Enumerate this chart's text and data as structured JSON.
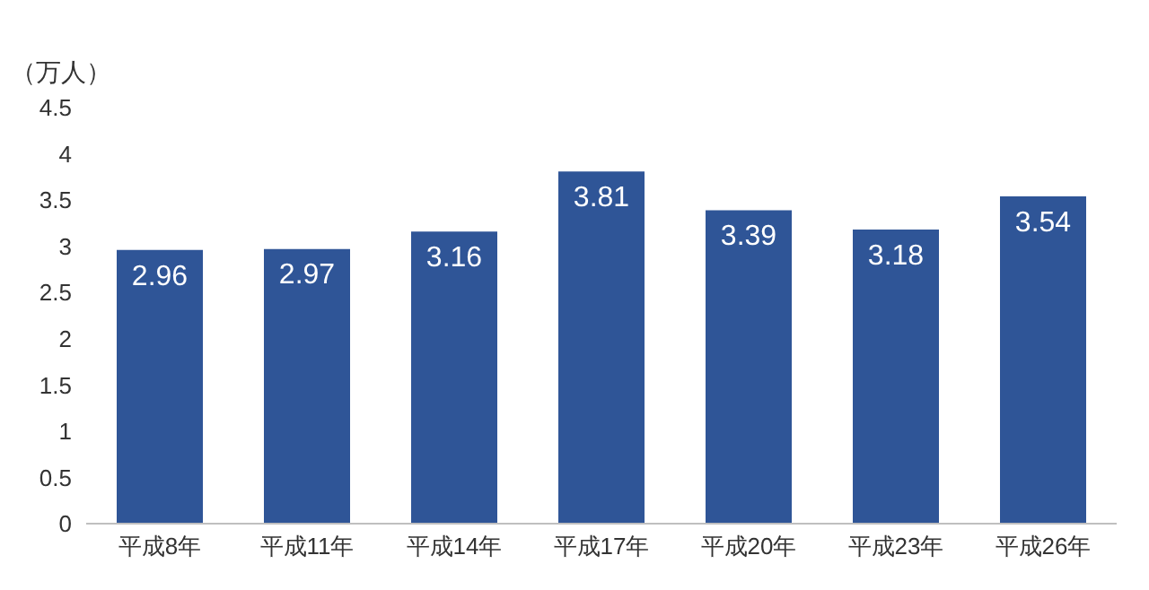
{
  "chart_data": {
    "type": "bar",
    "ylabel": "（万人）",
    "categories": [
      "平成8年",
      "平成11年",
      "平成14年",
      "平成17年",
      "平成20年",
      "平成23年",
      "平成26年"
    ],
    "values": [
      2.96,
      2.97,
      3.16,
      3.81,
      3.39,
      3.18,
      3.54
    ],
    "color": "#2f5597",
    "data_labels": true,
    "grid": false,
    "legend": false,
    "ylim": [
      0,
      4.5
    ],
    "yticks": [
      0,
      0.5,
      1,
      1.5,
      2,
      2.5,
      3,
      3.5,
      4,
      4.5
    ]
  }
}
